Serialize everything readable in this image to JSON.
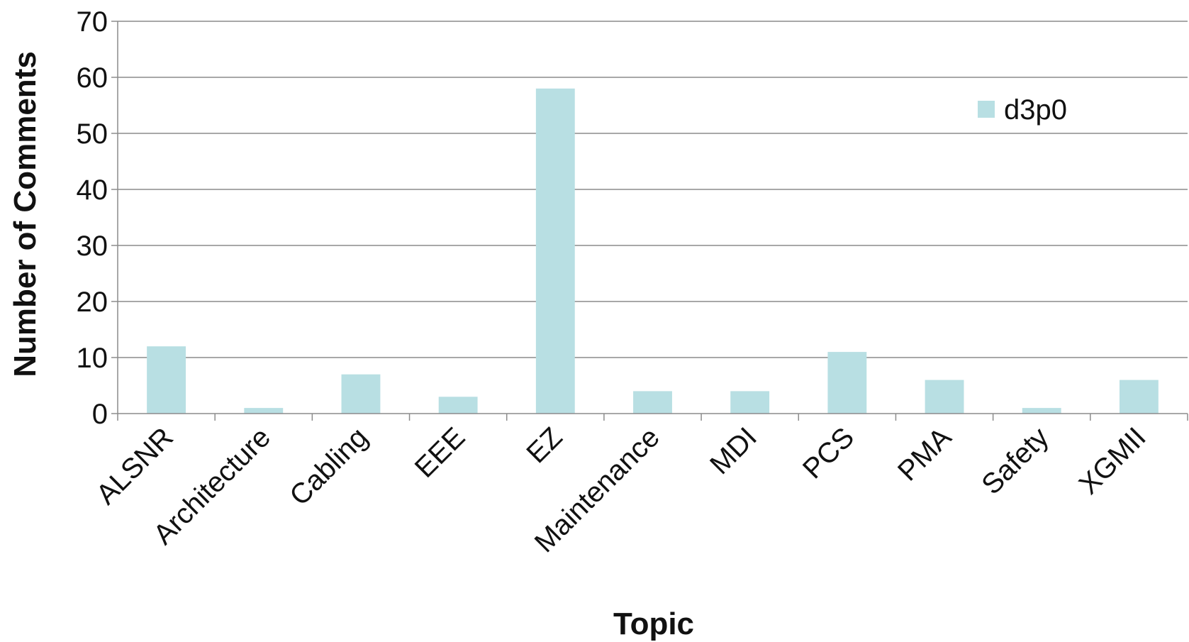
{
  "chart_data": {
    "type": "bar",
    "categories": [
      "ALSNR",
      "Architecture",
      "Cabling",
      "EEE",
      "EZ",
      "Maintenance",
      "MDI",
      "PCS",
      "PMA",
      "Safety",
      "XGMII"
    ],
    "series": [
      {
        "name": "d3p0",
        "values": [
          12,
          1,
          7,
          3,
          58,
          4,
          4,
          11,
          6,
          1,
          6
        ],
        "color": "#b8dfe3"
      }
    ],
    "xlabel": "Topic",
    "ylabel": "Number of Comments",
    "ylim": [
      0,
      70
    ],
    "yticks": [
      0,
      10,
      20,
      30,
      40,
      50,
      60,
      70
    ],
    "grid": true,
    "legend_position": "top-right"
  }
}
